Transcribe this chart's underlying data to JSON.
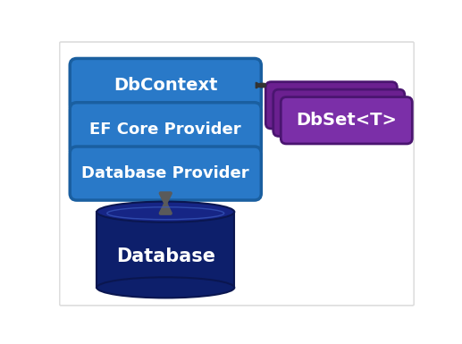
{
  "background_color": "#ffffff",
  "border_color": "#dddddd",
  "box_blue_color": "#2979C8",
  "box_blue_edge": "#1a5fa0",
  "box_purple_front": "#7B2FA8",
  "box_purple_back": "#6B2090",
  "box_purple_edge": "#4a1570",
  "db_body_color": "#0D1F6B",
  "db_top_color": "#162585",
  "db_highlight_color": "#1e3099",
  "db_edge_color": "#0a1650",
  "arrow_color": "#5a5a5a",
  "text_color": "#ffffff",
  "labels_left": [
    "DbContext",
    "EF Core Provider",
    "Database Provider"
  ],
  "label_db": "Database",
  "label_dbset": "DbSet<T>",
  "fig_width": 5.17,
  "fig_height": 3.85,
  "dpi": 100
}
